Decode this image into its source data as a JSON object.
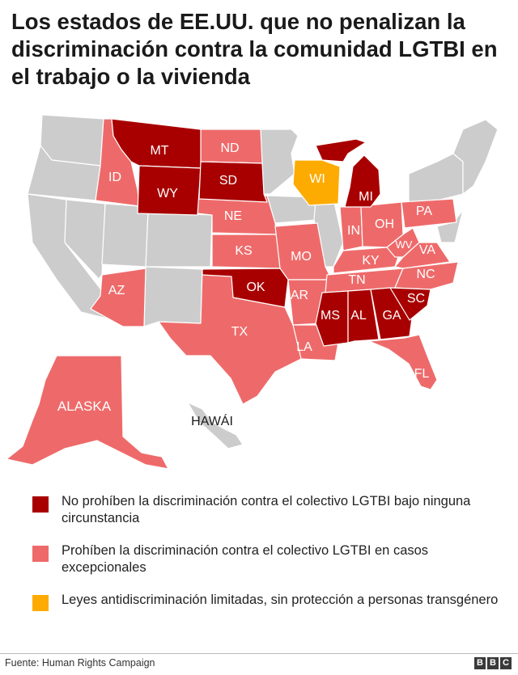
{
  "title": "Los estados de EE.UU. que no penalizan la discriminación contra la comunidad LGTBI en el trabajo o la vivienda",
  "colors": {
    "no_protection": "#a80000",
    "exceptional": "#ee6a6a",
    "limited": "#fdab00",
    "protected": "#cccccc"
  },
  "map": {
    "hawaii_label": "HAWÁI",
    "states": {
      "MT": "MT",
      "WY": "WY",
      "SD": "SD",
      "OK": "OK",
      "MI": "MI",
      "MS": "MS",
      "AL": "AL",
      "GA": "GA",
      "SC": "SC",
      "ND": "ND",
      "ID": "ID",
      "NE": "NE",
      "KS": "KS",
      "MO": "MO",
      "AR": "AR",
      "TX": "TX",
      "LA": "LA",
      "AZ": "AZ",
      "FL": "FL",
      "IN": "IN",
      "OH": "OH",
      "PA": "PA",
      "KY": "KY",
      "WV": "WV",
      "VA": "VA",
      "TN": "TN",
      "NC": "NC",
      "WI": "WI",
      "ALASKA": "ALASKA"
    }
  },
  "legend": [
    {
      "label": "No prohíben la discriminación contra el colectivo LGTBI bajo ninguna circunstancia",
      "color": "#a80000"
    },
    {
      "label": "Prohíben la discriminación contra el colectivo LGTBI en casos excepcionales",
      "color": "#ee6a6a"
    },
    {
      "label": "Leyes antidiscriminación limitadas, sin protección a personas transgénero",
      "color": "#fdab00"
    }
  ],
  "source": "Fuente: Human Rights Campaign",
  "brand": [
    "B",
    "B",
    "C"
  ]
}
